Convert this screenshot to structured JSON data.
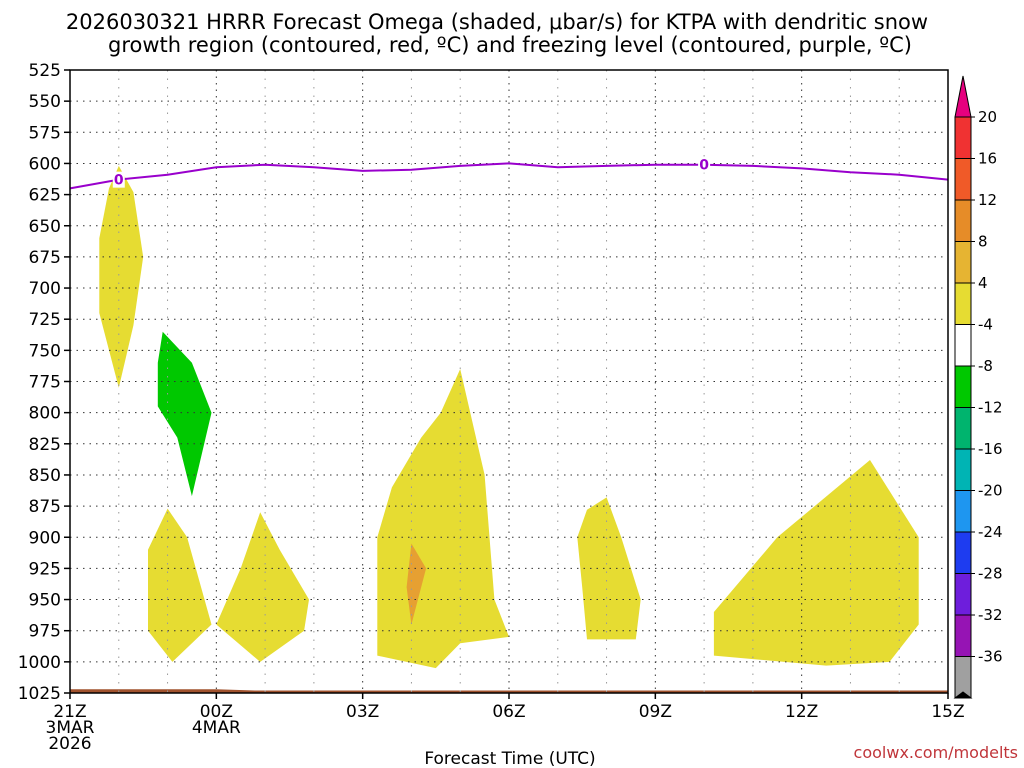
{
  "chart_data": {
    "type": "time-height-contour",
    "title_line1": "2026030321 HRRR Forecast Omega (shaded, μbar/s) for KTPA with dendritic snow",
    "title_line2": "growth region (contoured, red, ºC) and freezing level (contoured, purple, ºC)",
    "xlabel": "Forecast Time (UTC)",
    "credit": "coolwx.com/modelts",
    "xlim_hours": [
      0,
      18
    ],
    "ylim_hpa": [
      1025,
      525
    ],
    "y_ticks": [
      "525",
      "550",
      "575",
      "600",
      "625",
      "650",
      "675",
      "700",
      "725",
      "750",
      "775",
      "800",
      "825",
      "850",
      "875",
      "900",
      "925",
      "950",
      "975",
      "1000",
      "1025"
    ],
    "x_ticks": [
      {
        "h": 0,
        "lines": [
          "21Z",
          "3MAR",
          "2026"
        ]
      },
      {
        "h": 3,
        "lines": [
          "00Z",
          "4MAR"
        ]
      },
      {
        "h": 6,
        "lines": [
          "03Z"
        ]
      },
      {
        "h": 9,
        "lines": [
          "06Z"
        ]
      },
      {
        "h": 12,
        "lines": [
          "09Z"
        ]
      },
      {
        "h": 15,
        "lines": [
          "12Z"
        ]
      },
      {
        "h": 18,
        "lines": [
          "15Z"
        ]
      }
    ],
    "freezing_level": {
      "label": "0",
      "color": "#9900cc",
      "label_hours": [
        1.0,
        13.0
      ],
      "points": [
        [
          0,
          620
        ],
        [
          1,
          613
        ],
        [
          2,
          609
        ],
        [
          3,
          603
        ],
        [
          4,
          601
        ],
        [
          5,
          603
        ],
        [
          6,
          606
        ],
        [
          7,
          605
        ],
        [
          8,
          602
        ],
        [
          9,
          600
        ],
        [
          10,
          603
        ],
        [
          11,
          602
        ],
        [
          12,
          601
        ],
        [
          13,
          601
        ],
        [
          14,
          602
        ],
        [
          15,
          604
        ],
        [
          16,
          607
        ],
        [
          17,
          609
        ],
        [
          18,
          613
        ]
      ]
    },
    "terrain": {
      "color": "#a0522d",
      "points": [
        [
          0,
          1022
        ],
        [
          3,
          1022
        ],
        [
          3.8,
          1023
        ],
        [
          18,
          1023
        ],
        [
          18,
          1025
        ],
        [
          0,
          1025
        ]
      ]
    },
    "omega_regions": [
      {
        "name": "omega-region-1",
        "color": "#e6dc32",
        "points": [
          [
            1,
            602
          ],
          [
            1.3,
            623
          ],
          [
            1.5,
            675
          ],
          [
            1.3,
            730
          ],
          [
            1.0,
            780
          ],
          [
            0.6,
            720
          ],
          [
            0.6,
            660
          ],
          [
            0.8,
            620
          ]
        ]
      },
      {
        "name": "omega-region-2",
        "color": "#00c800",
        "points": [
          [
            1.9,
            735
          ],
          [
            2.5,
            760
          ],
          [
            2.9,
            800
          ],
          [
            2.5,
            867
          ],
          [
            2.2,
            820
          ],
          [
            1.8,
            795
          ],
          [
            1.8,
            760
          ]
        ]
      },
      {
        "name": "omega-region-3",
        "color": "#e6dc32",
        "points": [
          [
            2.0,
            877
          ],
          [
            2.4,
            900
          ],
          [
            2.9,
            970
          ],
          [
            2.1,
            1000
          ],
          [
            1.6,
            975
          ],
          [
            1.6,
            910
          ]
        ]
      },
      {
        "name": "omega-region-4",
        "color": "#e6dc32",
        "points": [
          [
            3.9,
            880
          ],
          [
            4.3,
            910
          ],
          [
            4.9,
            950
          ],
          [
            4.8,
            975
          ],
          [
            3.9,
            1000
          ],
          [
            3.0,
            970
          ],
          [
            3.5,
            925
          ]
        ]
      },
      {
        "name": "omega-region-5",
        "color": "#e6dc32",
        "points": [
          [
            8.0,
            765
          ],
          [
            8.5,
            850
          ],
          [
            8.7,
            950
          ],
          [
            9.0,
            980
          ],
          [
            8.0,
            985
          ],
          [
            7.5,
            1005
          ],
          [
            6.3,
            995
          ],
          [
            6.3,
            945
          ],
          [
            6.3,
            900
          ],
          [
            6.6,
            860
          ],
          [
            7.2,
            820
          ],
          [
            7.6,
            800
          ]
        ]
      },
      {
        "name": "omega-region-6",
        "color": "#e6a032",
        "points": [
          [
            7.0,
            905
          ],
          [
            7.3,
            925
          ],
          [
            7.0,
            970
          ],
          [
            6.9,
            940
          ]
        ]
      },
      {
        "name": "omega-region-7",
        "color": "#e6dc32",
        "points": [
          [
            11.0,
            868
          ],
          [
            11.3,
            900
          ],
          [
            11.7,
            950
          ],
          [
            11.6,
            982
          ],
          [
            10.6,
            982
          ],
          [
            10.5,
            940
          ],
          [
            10.4,
            900
          ],
          [
            10.6,
            878
          ]
        ]
      },
      {
        "name": "omega-region-8",
        "color": "#e6dc32",
        "points": [
          [
            16.4,
            838
          ],
          [
            17.4,
            900
          ],
          [
            17.4,
            970
          ],
          [
            16.8,
            1000
          ],
          [
            15.5,
            1003
          ],
          [
            13.2,
            995
          ],
          [
            13.2,
            960
          ],
          [
            14.5,
            900
          ]
        ]
      }
    ],
    "colorbar": {
      "labels": [
        "20",
        "16",
        "12",
        "8",
        "4",
        "-4",
        "-8",
        "-12",
        "-16",
        "-20",
        "-24",
        "-28",
        "-32",
        "-36"
      ],
      "top_arrow_color": "#e6007e",
      "bottom_arrow_color": "#000000",
      "segments": [
        "#f03232",
        "#f05a28",
        "#e68c28",
        "#e6b432",
        "#e6dc32",
        "#ffffff",
        "#00c800",
        "#00b46e",
        "#00b4b4",
        "#1e96f0",
        "#1e3cf0",
        "#6e1edc",
        "#9614b4",
        "#a0a0a0"
      ]
    }
  }
}
